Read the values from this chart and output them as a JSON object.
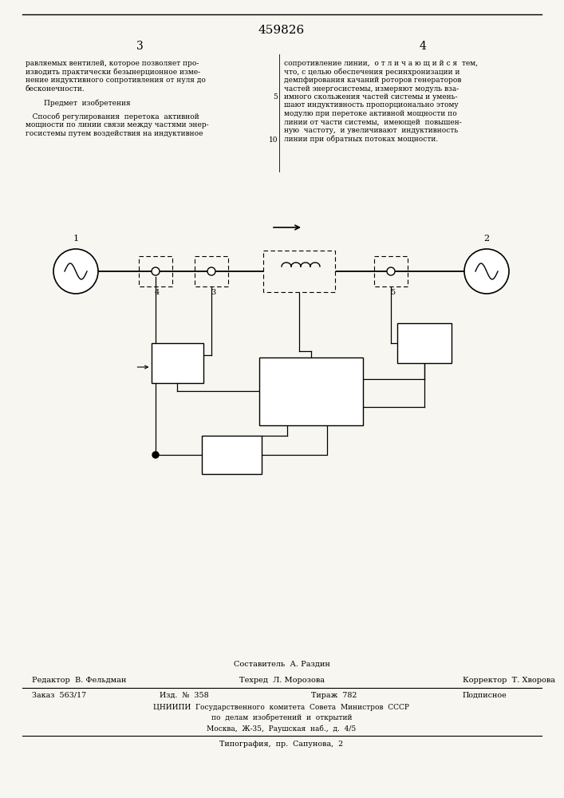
{
  "title": "459826",
  "page_left": "3",
  "page_right": "4",
  "text_left": "равляемых вентилей, которое позволяет про-\nизводить практически безынерционное изме-\nнение индуктивного сопротивления от нуля до\nбесконечности.\n\n        Предмет  изобретения\n\n   Способ регулирования  перетока  активной\nмощности по линии связи между частями энер-\nгосистемы путем воздействия на индуктивное",
  "text_right": "сопротивление линии,  о т л и ч а ю щ и й с я  тем,\nчто, с целью обеспечения ресинхронизации и\nдемпфирования качаний роторов генераторов\nчастей энергосистемы, измеряют модуль вза-\nимного скольжения частей системы и умень-\nшают индуктивность пропорционально этому\nмодулю при перетоке активной мощности по\nлинии от части системы,  имеющей  повышен-\nную  частоту,  и увеличивают  индуктивность\nлинии при обратных потоках мощности.",
  "line_number_5": "5",
  "line_number_10": "10",
  "footer_compiler": "Составитель  А. Раздин",
  "footer_editor": "Редактор  В. Фельдман",
  "footer_tech": "Техред  Л. Морозова",
  "footer_corrector": "Корректор  Т. Хворова",
  "footer_order": "Заказ  563/17",
  "footer_pub": "Изд.  №  358",
  "footer_circulation": "Тираж  782",
  "footer_sign": "Подписное",
  "footer_org1": "ЦНИИПИ  Государственного  комитета  Совета  Министров  СССР",
  "footer_org2": "по  делам  изобретений  и  открытий",
  "footer_org3": "Москва,  Ж-35,  Раушская  наб.,  д.  4/5",
  "footer_print": "Типография,  пр.  Сапунова,  2",
  "bg_color": "#f7f6f0"
}
